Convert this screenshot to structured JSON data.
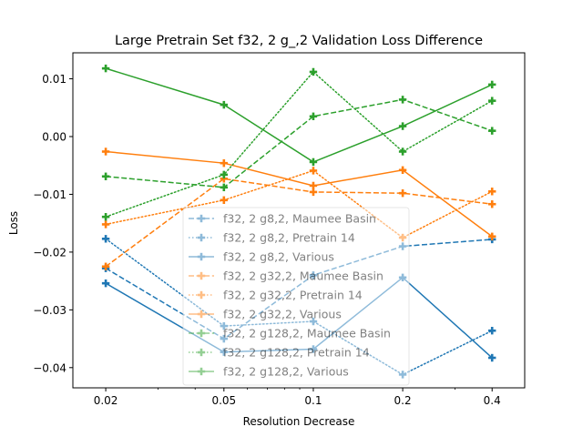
{
  "chart_data": {
    "type": "line",
    "title": "Large Pretrain Set f32, 2 g_,2 Validation Loss Difference",
    "xlabel": "Resolution Decrease",
    "ylabel": "Loss",
    "x_scale": "log",
    "x": [
      0.02,
      0.05,
      0.1,
      0.2,
      0.4
    ],
    "x_tick_labels": [
      "0.02",
      "0.05",
      "0.1",
      "0.2",
      "0.4"
    ],
    "xlim": [
      0.0155,
      0.515
    ],
    "ylim": [
      -0.0435,
      0.0145
    ],
    "y_ticks": [
      0.01,
      0.0,
      -0.01,
      -0.02,
      -0.03,
      -0.04
    ],
    "y_tick_labels": [
      "0.01",
      "0.00",
      "−0.01",
      "−0.02",
      "−0.03",
      "−0.04"
    ],
    "grid": false,
    "legend_position": "center",
    "legend_alpha": 0.5,
    "series": [
      {
        "name": "f32, 2 g8,2, Maumee Basin",
        "color": "#1f77b4",
        "dash": "dashed",
        "values": [
          -0.0228,
          -0.035,
          -0.024,
          -0.019,
          -0.0178
        ]
      },
      {
        "name": "f32, 2 g8,2, Pretrain 14",
        "color": "#1f77b4",
        "dash": "dotted",
        "values": [
          -0.0177,
          -0.0328,
          -0.032,
          -0.0412,
          -0.0336
        ]
      },
      {
        "name": "f32, 2 g8,2, Various",
        "color": "#1f77b4",
        "dash": "solid",
        "values": [
          -0.0254,
          -0.0373,
          -0.0368,
          -0.0244,
          -0.0383
        ]
      },
      {
        "name": "f32, 2 g32,2, Maumee Basin",
        "color": "#ff7f0e",
        "dash": "dashed",
        "values": [
          -0.0225,
          -0.0073,
          -0.0096,
          -0.0098,
          -0.0117
        ]
      },
      {
        "name": "f32, 2 g32,2, Pretrain 14",
        "color": "#ff7f0e",
        "dash": "dotted",
        "values": [
          -0.0152,
          -0.011,
          -0.0059,
          -0.0175,
          -0.0095
        ]
      },
      {
        "name": "f32, 2 g32,2, Various",
        "color": "#ff7f0e",
        "dash": "solid",
        "values": [
          -0.0026,
          -0.0046,
          -0.0085,
          -0.0058,
          -0.0173
        ]
      },
      {
        "name": "f32, 2 g128,2, Maumee Basin",
        "color": "#2ca02c",
        "dash": "dashed",
        "values": [
          -0.0069,
          -0.0088,
          0.0035,
          0.0064,
          0.001
        ]
      },
      {
        "name": "f32, 2 g128,2, Pretrain 14",
        "color": "#2ca02c",
        "dash": "dotted",
        "values": [
          -0.0139,
          -0.0066,
          0.0112,
          -0.0026,
          0.0062
        ]
      },
      {
        "name": "f32, 2 g128,2, Various",
        "color": "#2ca02c",
        "dash": "solid",
        "values": [
          0.0118,
          0.0055,
          -0.0044,
          0.0018,
          0.009
        ]
      }
    ]
  }
}
